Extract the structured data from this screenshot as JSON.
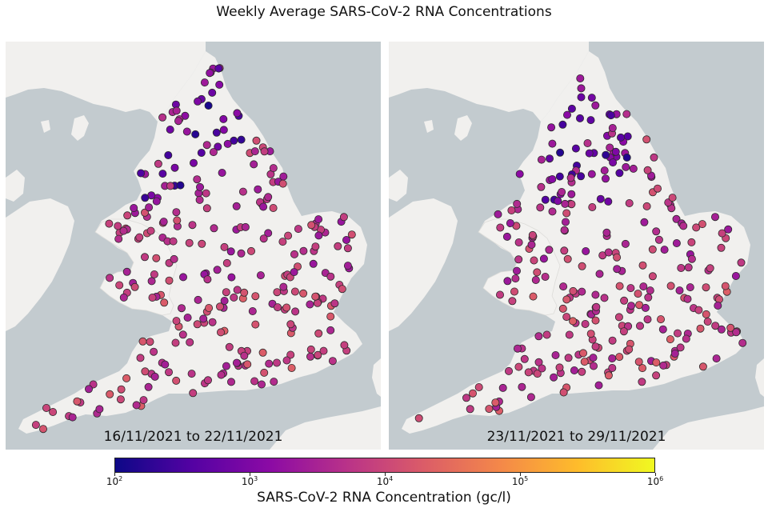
{
  "title": "Weekly Average SARS-CoV-2 RNA Concentrations",
  "panels": [
    {
      "date_range": "16/11/2021 to 22/11/2021"
    },
    {
      "date_range": "23/11/2021 to 29/11/2021"
    }
  ],
  "colorbar": {
    "label": "SARS-CoV-2 RNA Concentration (gc/l)",
    "ticks": [
      {
        "base": "10",
        "exp": "2"
      },
      {
        "base": "10",
        "exp": "3"
      },
      {
        "base": "10",
        "exp": "4"
      },
      {
        "base": "10",
        "exp": "5"
      },
      {
        "base": "10",
        "exp": "6"
      }
    ],
    "colormap": "plasma",
    "scale": "log"
  },
  "colors": {
    "sea": "#c3cbcf",
    "land": "#f1f0ee",
    "marker_edge": "#2b2b2b"
  }
}
